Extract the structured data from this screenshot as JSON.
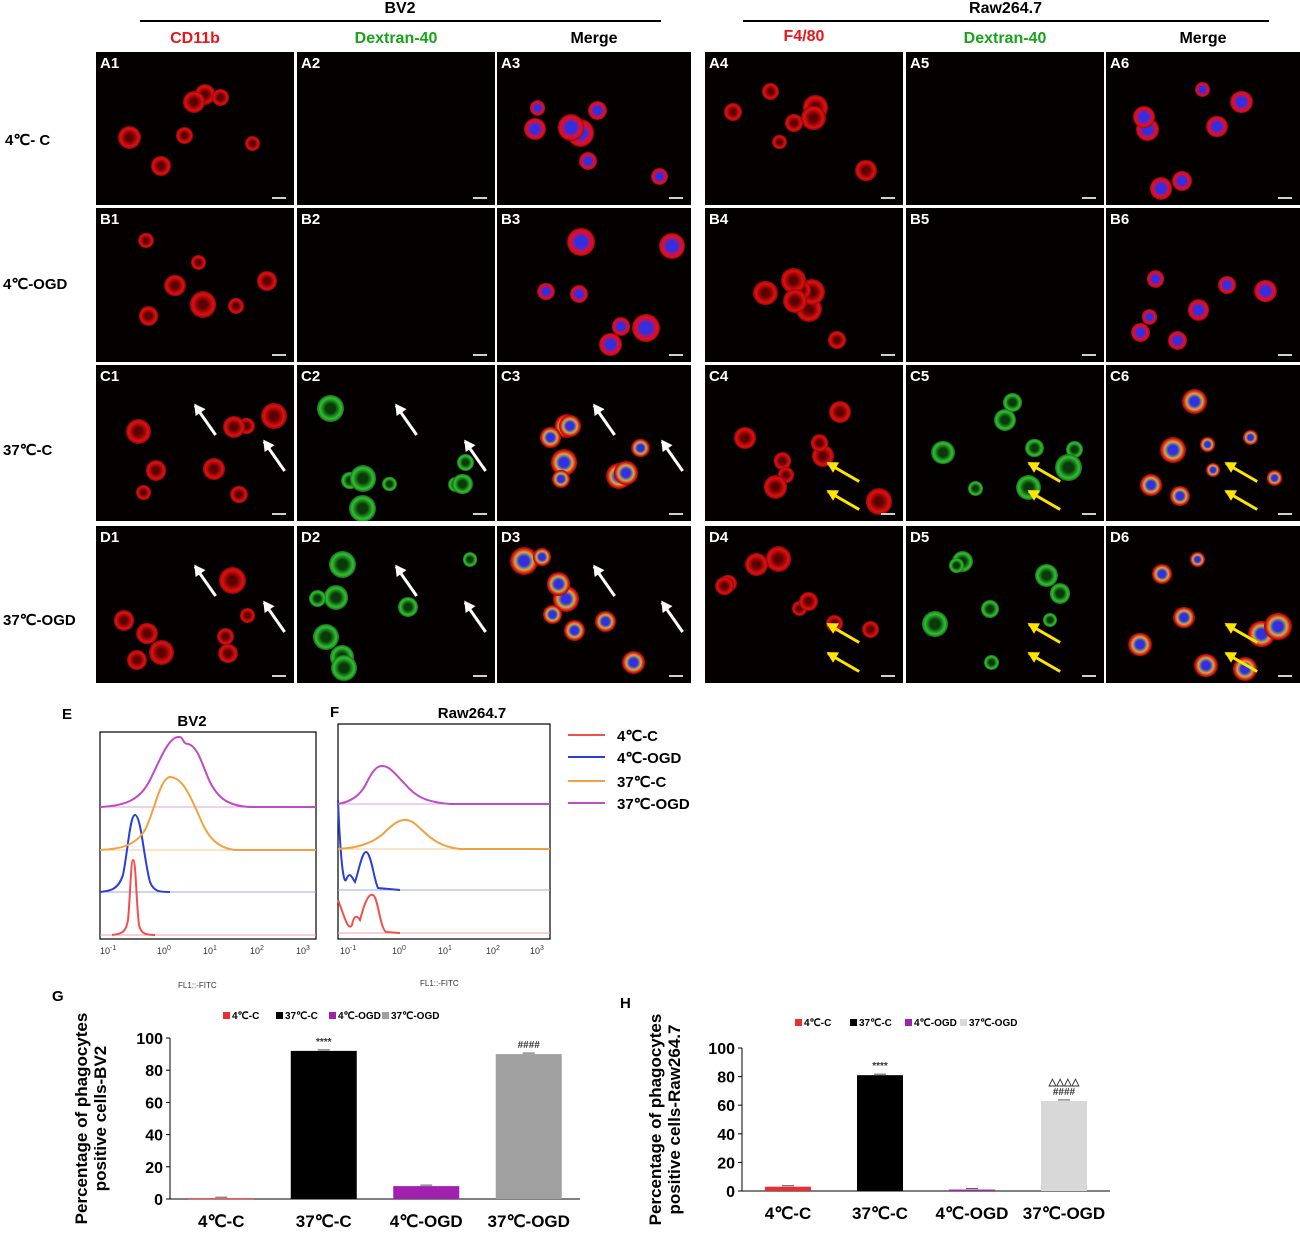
{
  "headers": {
    "bv2": "BV2",
    "raw": "Raw264.7",
    "columns": [
      {
        "text": "CD11b",
        "color": "#e8151b"
      },
      {
        "text": "Dextran-40",
        "color": "#19a319"
      },
      {
        "text": "Merge",
        "color": "#000000"
      },
      {
        "text": "F4/80",
        "color": "#e8151b"
      },
      {
        "text": "Dextran-40",
        "color": "#19a319"
      },
      {
        "text": "Merge",
        "color": "#000000"
      }
    ]
  },
  "rows": [
    "4℃- C",
    "4℃-OGD",
    "37℃-C",
    "37℃-OGD"
  ],
  "panels": [
    [
      "A1",
      "A2",
      "A3",
      "A4",
      "A5",
      "A6"
    ],
    [
      "B1",
      "B2",
      "B3",
      "B4",
      "B5",
      "B6"
    ],
    [
      "C1",
      "C2",
      "C3",
      "C4",
      "C5",
      "C6"
    ],
    [
      "D1",
      "D2",
      "D3",
      "D4",
      "D5",
      "D6"
    ]
  ],
  "flow": {
    "E": {
      "letter": "E",
      "title": "BV2",
      "xlabel": "FL1::-FITC"
    },
    "F": {
      "letter": "F",
      "title": "Raw264.7",
      "xlabel": "FL1::-FITC"
    },
    "legend": [
      {
        "label": "4℃-C",
        "color": "#f0504d"
      },
      {
        "label": "4℃-OGD",
        "color": "#2a3fd6"
      },
      {
        "label": "37℃-C",
        "color": "#f5a040"
      },
      {
        "label": "37℃-OGD",
        "color": "#c04ac8"
      }
    ]
  },
  "chart_data": [
    {
      "panel": "G",
      "type": "bar",
      "ylabel": "Percentage of phagocytes positive cells-BV2",
      "ylim": [
        0,
        100
      ],
      "yticks": [
        0,
        20,
        40,
        60,
        80,
        100
      ],
      "categories": [
        "4℃-C",
        "37℃-C",
        "4℃-OGD",
        "37℃-OGD"
      ],
      "values": [
        0.5,
        92,
        8,
        90
      ],
      "colors": [
        "#e83030",
        "#000000",
        "#a020b0",
        "#a0a0a0"
      ],
      "legend": [
        "4℃-C",
        "37℃-C",
        "4℃-OGD",
        "37℃-OGD"
      ],
      "annotations": [
        "",
        "****",
        "",
        "####"
      ]
    },
    {
      "panel": "H",
      "type": "bar",
      "ylabel": "Percentage of phagocytes positive cells-Raw264.7",
      "ylim": [
        0,
        100
      ],
      "yticks": [
        0,
        20,
        40,
        60,
        80,
        100
      ],
      "categories": [
        "4℃-C",
        "37℃-C",
        "4℃-OGD",
        "37℃-OGD"
      ],
      "values": [
        3,
        81,
        1,
        63
      ],
      "colors": [
        "#e83030",
        "#000000",
        "#a020b0",
        "#d8d8d8"
      ],
      "legend": [
        "4℃-C",
        "37℃-C",
        "4℃-OGD",
        "37℃-OGD"
      ],
      "annotations": [
        "",
        "****",
        "",
        "△△△△\n####"
      ]
    }
  ]
}
